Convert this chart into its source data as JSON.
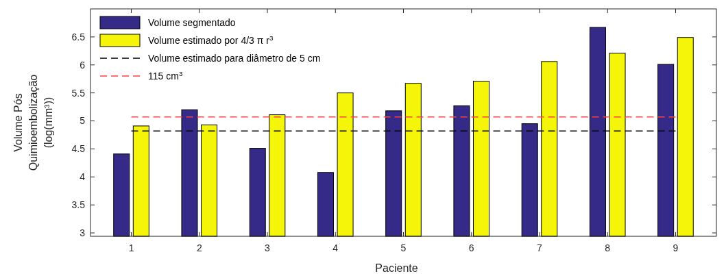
{
  "chart_data": {
    "type": "bar",
    "xlabel": "Paciente",
    "ylabel": "Volume Pós\nQuimioembolização\n(log(mm³))",
    "categories": [
      "1",
      "2",
      "3",
      "4",
      "5",
      "6",
      "7",
      "8",
      "9"
    ],
    "series": [
      {
        "name": "Volume segmentado",
        "color": "#352a87",
        "values": [
          4.41,
          5.2,
          4.51,
          4.08,
          5.18,
          5.27,
          4.95,
          6.67,
          6.01
        ]
      },
      {
        "name": "Volume estimado por 4/3 π r$^{3}$",
        "color": "#f5f50a",
        "values": [
          4.91,
          4.93,
          5.11,
          5.5,
          5.67,
          5.71,
          6.06,
          6.21,
          6.49
        ]
      }
    ],
    "ref_lines": [
      {
        "axis": "y",
        "value": 4.82,
        "label": "Volume estimado para diâmetro de 5 cm",
        "color": "#000000",
        "line_style": "dashed"
      },
      {
        "axis": "y",
        "value": 5.07,
        "label": "115 cm$^{3}$",
        "color": "#ff4040",
        "line_style": "dashed"
      }
    ],
    "ylim": [
      2.94,
      7
    ],
    "yticks": [
      3,
      3.5,
      4,
      4.5,
      5,
      5.5,
      6,
      6.5
    ],
    "grid": false,
    "legend": "top left"
  }
}
